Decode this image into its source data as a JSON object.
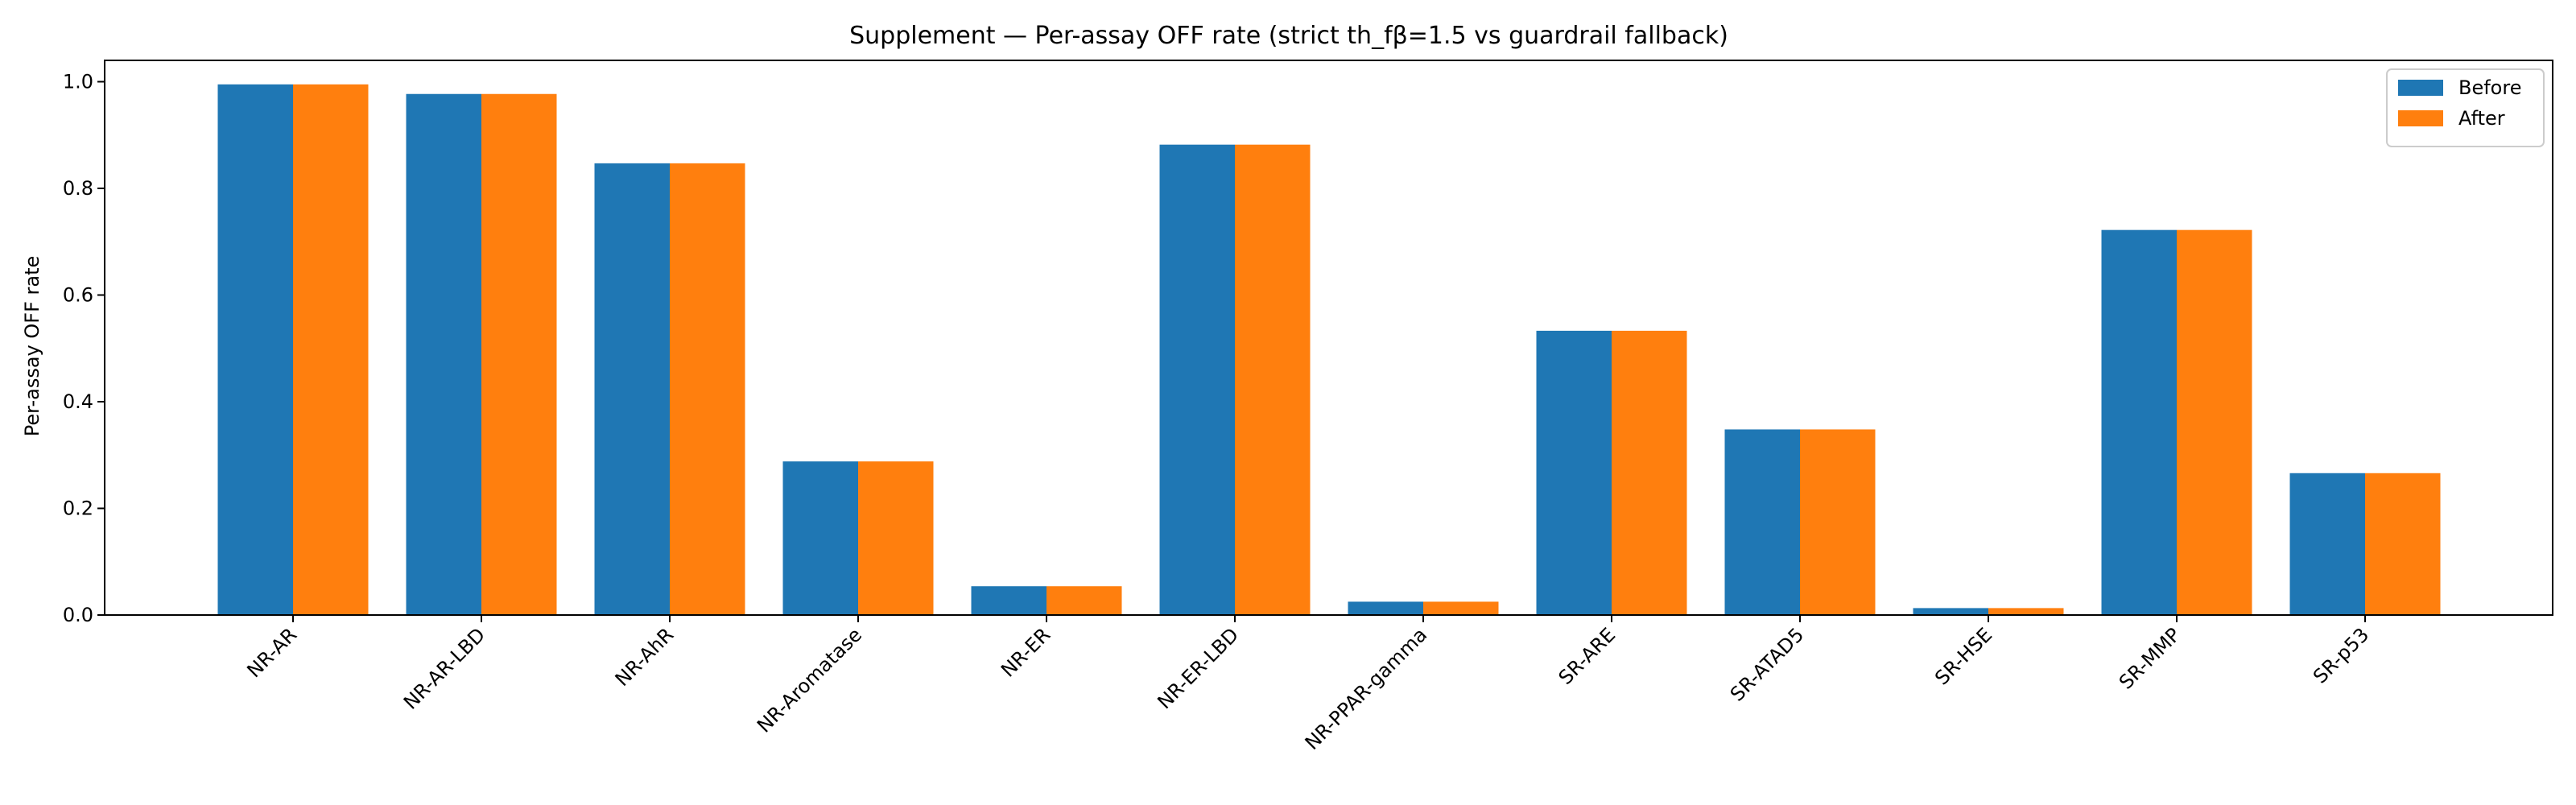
{
  "chart_data": {
    "type": "bar",
    "title": "Supplement — Per-assay OFF rate (strict th_fβ=1.5 vs guardrail fallback)",
    "xlabel": "",
    "ylabel": "Per-assay OFF rate",
    "ylim": [
      0.0,
      1.04
    ],
    "yticks": [
      "0.0",
      "0.2",
      "0.4",
      "0.6",
      "0.8",
      "1.0"
    ],
    "grid": false,
    "legend_position": "top-right",
    "categories": [
      "NR-AR",
      "NR-AR-LBD",
      "NR-AhR",
      "NR-Aromatase",
      "NR-ER",
      "NR-ER-LBD",
      "NR-PPAR-gamma",
      "SR-ARE",
      "SR-ATAD5",
      "SR-HSE",
      "SR-MMP",
      "SR-p53"
    ],
    "series": [
      {
        "name": "Before",
        "color": "#1f77b4",
        "values": [
          0.995,
          0.977,
          0.847,
          0.288,
          0.054,
          0.882,
          0.025,
          0.533,
          0.348,
          0.013,
          0.722,
          0.266
        ]
      },
      {
        "name": "After",
        "color": "#ff7f0e",
        "values": [
          0.995,
          0.977,
          0.847,
          0.288,
          0.054,
          0.882,
          0.025,
          0.533,
          0.348,
          0.013,
          0.722,
          0.266
        ]
      }
    ]
  }
}
